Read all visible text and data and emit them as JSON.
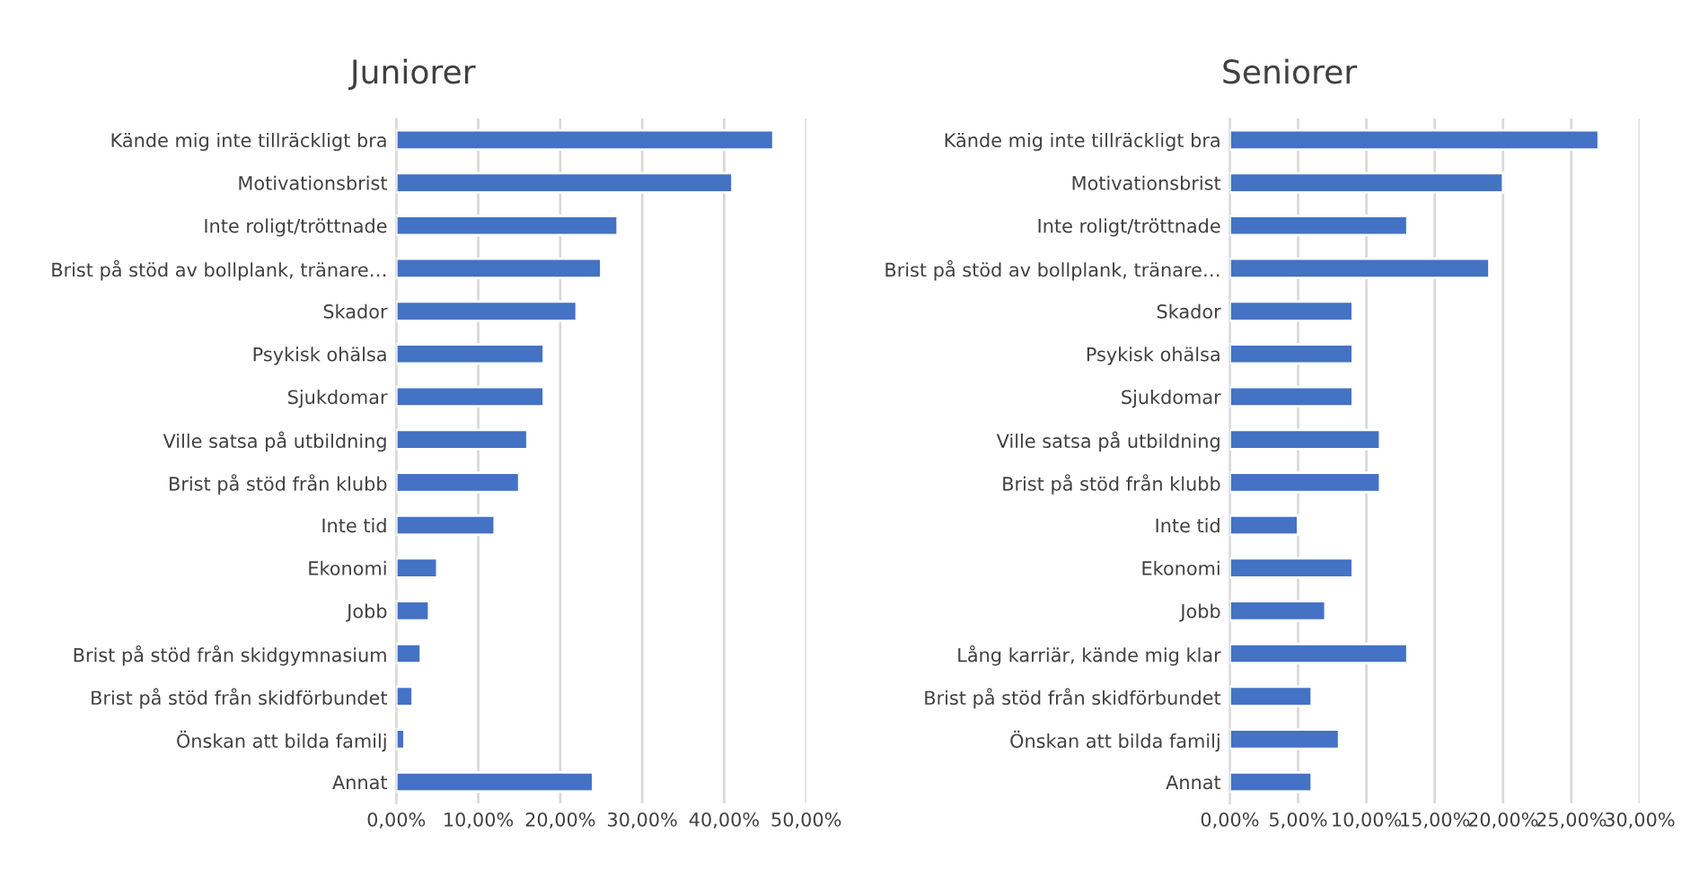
{
  "chart_data": [
    {
      "type": "bar",
      "orientation": "horizontal",
      "title": "Juniorer",
      "color": "#4472c4",
      "categories": [
        "Kände mig inte tillräckligt bra",
        "Motivationsbrist",
        "Inte roligt/tröttnade",
        "Brist på stöd av bollplank, tränare…",
        "Skador",
        "Psykisk ohälsa",
        "Sjukdomar",
        "Ville satsa på utbildning",
        "Brist på stöd från klubb",
        "Inte tid",
        "Ekonomi",
        "Jobb",
        "Brist på stöd från skidgymnasium",
        "Brist på stöd från skidförbundet",
        "Önskan att bilda familj",
        "Annat"
      ],
      "values": [
        46,
        41,
        27,
        25,
        22,
        18,
        18,
        16,
        15,
        12,
        5,
        4,
        3,
        2,
        1,
        24
      ],
      "xlim": [
        0,
        50
      ],
      "xticks": [
        {
          "value": 0,
          "label": "0,00%"
        },
        {
          "value": 10,
          "label": "10,00%"
        },
        {
          "value": 20,
          "label": "20,00%"
        },
        {
          "value": 30,
          "label": "30,00%"
        },
        {
          "value": 40,
          "label": "40,00%"
        },
        {
          "value": 50,
          "label": "50,00%"
        }
      ],
      "grid": "x",
      "legend": false
    },
    {
      "type": "bar",
      "orientation": "horizontal",
      "title": "Seniorer",
      "color": "#4472c4",
      "categories": [
        "Kände mig inte tillräckligt bra",
        "Motivationsbrist",
        "Inte roligt/tröttnade",
        "Brist på stöd av bollplank, tränare…",
        "Skador",
        "Psykisk ohälsa",
        "Sjukdomar",
        "Ville satsa på utbildning",
        "Brist på stöd från klubb",
        "Inte tid",
        "Ekonomi",
        "Jobb",
        "Lång karriär, kände mig klar",
        "Brist på stöd från skidförbundet",
        "Önskan att bilda familj",
        "Annat"
      ],
      "values": [
        27,
        20,
        13,
        19,
        9,
        9,
        9,
        11,
        11,
        5,
        9,
        7,
        13,
        6,
        8,
        6
      ],
      "xlim": [
        0,
        30
      ],
      "xticks": [
        {
          "value": 0,
          "label": "0,00%"
        },
        {
          "value": 5,
          "label": "5,00%"
        },
        {
          "value": 10,
          "label": "10,00%"
        },
        {
          "value": 15,
          "label": "15,00%"
        },
        {
          "value": 20,
          "label": "20,00%"
        },
        {
          "value": 25,
          "label": "25,00%"
        },
        {
          "value": 30,
          "label": "30,00%"
        }
      ],
      "grid": "x",
      "legend": false
    }
  ]
}
